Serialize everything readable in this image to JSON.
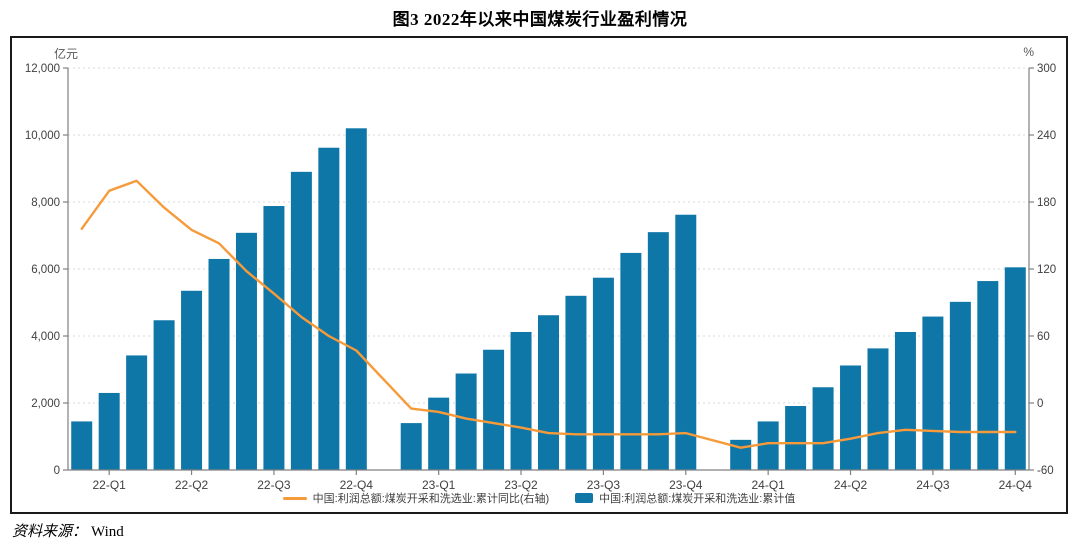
{
  "page": {
    "title": "图3  2022年以来中国煤炭行业盈利情况",
    "footer": {
      "source_label": "资料来源：",
      "source_name": "Wind"
    }
  },
  "legend": {
    "line_label": "中国:利润总额:煤炭开采和洗选业:累计同比(右轴)",
    "bar_label": "中国:利润总额:煤炭开采和洗选业:累计值"
  },
  "chart_data": {
    "type": "bar+line",
    "title": "图3 2022年以来中国煤炭行业盈利情况",
    "left_axis": {
      "unit": "亿元",
      "min": 0,
      "max": 12000,
      "step": 2000,
      "tick_labels": [
        "0",
        "2,000",
        "4,000",
        "6,000",
        "8,000",
        "10,000",
        "12,000"
      ]
    },
    "right_axis": {
      "unit": "%",
      "min": -60,
      "max": 300,
      "step": 60,
      "tick_labels": [
        "-60",
        "0",
        "60",
        "120",
        "180",
        "240",
        "300"
      ]
    },
    "x_axis": {
      "slot_count": 35,
      "ticks": [
        {
          "slot": 1,
          "label": "22-Q1"
        },
        {
          "slot": 4,
          "label": "22-Q2"
        },
        {
          "slot": 7,
          "label": "22-Q3"
        },
        {
          "slot": 10,
          "label": "22-Q4"
        },
        {
          "slot": 13,
          "label": "23-Q1"
        },
        {
          "slot": 16,
          "label": "23-Q2"
        },
        {
          "slot": 19,
          "label": "23-Q3"
        },
        {
          "slot": 22,
          "label": "23-Q4"
        },
        {
          "slot": 25,
          "label": "24-Q1"
        },
        {
          "slot": 28,
          "label": "24-Q2"
        },
        {
          "slot": 31,
          "label": "24-Q3"
        },
        {
          "slot": 34,
          "label": "24-Q4"
        }
      ]
    },
    "bar_series": {
      "name": "中国:利润总额:煤炭开采和洗选业:累计值",
      "axis": "left",
      "color": "#0f76a8",
      "slots": [
        0,
        1,
        2,
        3,
        4,
        5,
        6,
        7,
        8,
        9,
        10,
        12,
        13,
        14,
        15,
        16,
        17,
        18,
        19,
        20,
        21,
        22,
        24,
        25,
        26,
        27,
        28,
        29,
        30,
        31,
        32,
        33,
        34
      ],
      "values": [
        1450,
        2300,
        3420,
        4470,
        5350,
        6300,
        7080,
        7880,
        8900,
        9620,
        10200,
        1400,
        2160,
        2880,
        3590,
        4120,
        4620,
        5200,
        5740,
        6480,
        7100,
        7620,
        900,
        1450,
        1910,
        2470,
        3120,
        3630,
        4120,
        4580,
        5020,
        5640,
        6050
      ]
    },
    "line_series": {
      "name": "中国:利润总额:煤炭开采和洗选业:累计同比(右轴)",
      "axis": "right",
      "color": "#f79a3a",
      "slots": [
        0,
        1,
        2,
        3,
        4,
        5,
        6,
        7,
        8,
        9,
        10,
        12,
        13,
        14,
        15,
        16,
        17,
        18,
        19,
        20,
        21,
        22,
        24,
        25,
        26,
        27,
        28,
        29,
        30,
        31,
        32,
        33,
        34
      ],
      "values": [
        156,
        190,
        199,
        175,
        155,
        143,
        118,
        98,
        77,
        60,
        47,
        -5,
        -8,
        -14,
        -18,
        -22,
        -27,
        -28,
        -28,
        -28,
        -28,
        -27,
        -40,
        -36,
        -36,
        -36,
        -32,
        -27,
        -24,
        -25,
        -26,
        -26,
        -26
      ]
    },
    "style": {
      "grid_color": "#d9d9d9",
      "axis_color": "#808080",
      "tick_label_color": "#404040"
    }
  }
}
